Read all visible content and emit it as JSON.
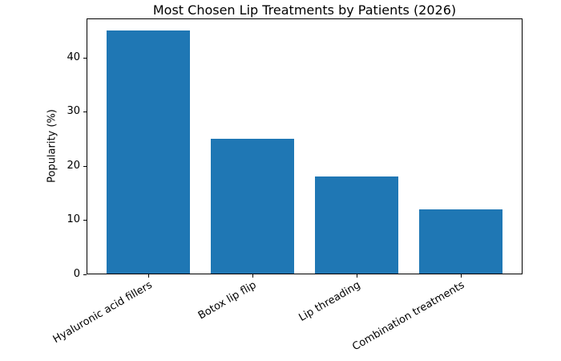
{
  "chart_data": {
    "type": "bar",
    "title": "Most Chosen Lip Treatments by Patients (2026)",
    "ylabel": "Popularity (%)",
    "xlabel": "",
    "categories": [
      "Hyaluronic acid fillers",
      "Botox lip flip",
      "Lip threading",
      "Combination treatments"
    ],
    "values": [
      45,
      25,
      18,
      12
    ],
    "yticks": [
      0,
      10,
      20,
      30,
      40
    ],
    "ylim": [
      0,
      47.25
    ],
    "bar_color": "#1f77b4",
    "background_color": "#ffffff",
    "axis_color": "#000000",
    "x_tick_label_rotation_deg": 30,
    "grid": false,
    "legend": "none"
  }
}
